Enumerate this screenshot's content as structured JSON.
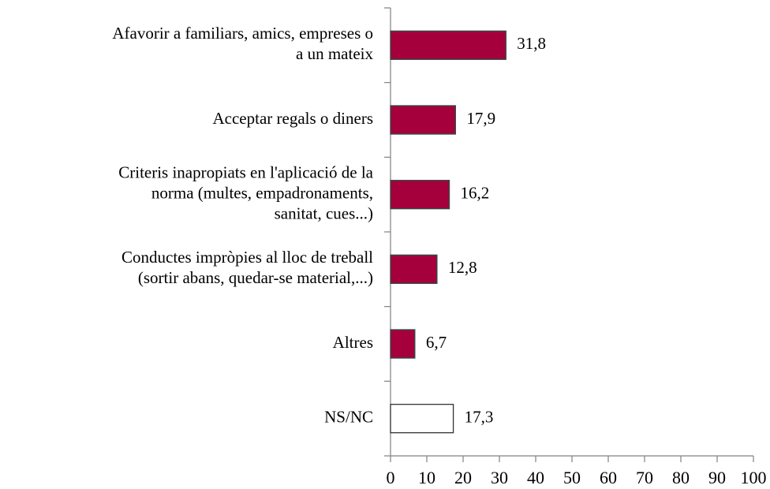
{
  "chart_data": {
    "type": "bar",
    "orientation": "horizontal",
    "categories": [
      [
        "Afavorir a familiars, amics, empreses o",
        "a un mateix"
      ],
      [
        "Acceptar regals o diners"
      ],
      [
        "Criteris inapropiats en l'aplicació de la",
        "norma (multes, empadronaments,",
        "sanitat, cues...)"
      ],
      [
        "Conductes impròpies al lloc de treball",
        "(sortir abans, quedar-se material,...)"
      ],
      [
        "Altres"
      ],
      [
        "NS/NC"
      ]
    ],
    "values": [
      31.8,
      17.9,
      16.2,
      12.8,
      6.7,
      17.3
    ],
    "value_labels": [
      "31,8",
      "17,9",
      "16,2",
      "12,8",
      "6,7",
      "17,3"
    ],
    "colors": [
      "#a5003c",
      "#a5003c",
      "#a5003c",
      "#a5003c",
      "#a5003c",
      "#ffffff"
    ],
    "xlim": [
      0,
      100
    ],
    "xticks": [
      0,
      10,
      20,
      30,
      40,
      50,
      60,
      70,
      80,
      90,
      100
    ]
  }
}
